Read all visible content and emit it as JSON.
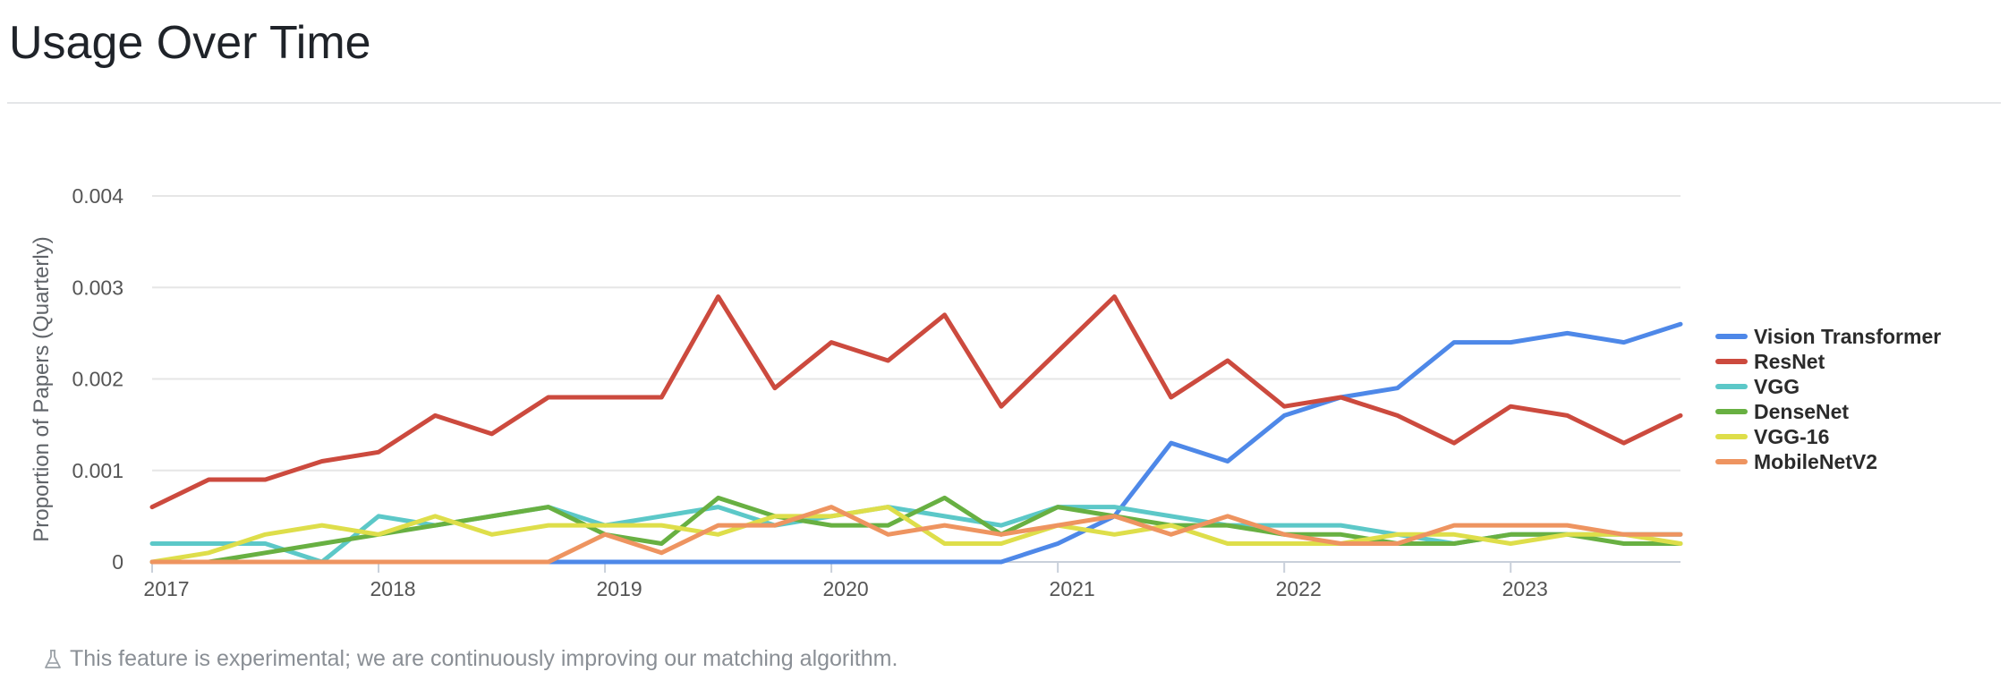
{
  "page": {
    "title": "Usage Over Time",
    "note": "This feature is experimental; we are continuously improving our matching algorithm."
  },
  "chart_data": {
    "type": "line",
    "title": "",
    "xlabel": "",
    "ylabel": "Proportion of Papers (Quarterly)",
    "ylim": [
      0,
      0.004
    ],
    "yticks": [
      0,
      0.001,
      0.002,
      0.003,
      0.004
    ],
    "ytick_labels": [
      "0",
      "0.001",
      "0.002",
      "0.003",
      "0.004"
    ],
    "xlim": [
      2017,
      2023.75
    ],
    "xticks": [
      2017,
      2018,
      2019,
      2020,
      2021,
      2022,
      2023
    ],
    "xtick_labels": [
      "2017",
      "2018",
      "2019",
      "2020",
      "2021",
      "2022",
      "2023"
    ],
    "grid": true,
    "legend_position": "right",
    "x": [
      2017,
      2017.25,
      2017.5,
      2017.75,
      2018,
      2018.25,
      2018.5,
      2018.75,
      2019,
      2019.25,
      2019.5,
      2019.75,
      2020,
      2020.25,
      2020.5,
      2020.75,
      2021,
      2021.25,
      2021.5,
      2021.75,
      2022,
      2022.25,
      2022.5,
      2022.75,
      2023,
      2023.25,
      2023.5,
      2023.75
    ],
    "series": [
      {
        "name": "Vision Transformer",
        "color": "#4e88e8",
        "values": [
          0,
          0,
          0,
          0,
          0,
          0,
          0,
          0,
          0,
          0,
          0,
          0,
          0,
          0,
          0,
          0,
          0.0002,
          0.0005,
          0.0013,
          0.0011,
          0.0016,
          0.0018,
          0.0019,
          0.0024,
          0.0024,
          0.0025,
          0.0024,
          0.0026
        ]
      },
      {
        "name": "ResNet",
        "color": "#cc4a3e",
        "values": [
          0.0006,
          0.0009,
          0.0009,
          0.0011,
          0.0012,
          0.0016,
          0.0014,
          0.0018,
          0.0018,
          0.0018,
          0.0029,
          0.0019,
          0.0024,
          0.0022,
          0.0027,
          0.0017,
          0.0023,
          0.0029,
          0.0018,
          0.0022,
          0.0017,
          0.0018,
          0.0016,
          0.0013,
          0.0017,
          0.0016,
          0.0013,
          0.0016
        ]
      },
      {
        "name": "VGG",
        "color": "#5cc8c8",
        "values": [
          0.0002,
          0.0002,
          0.0002,
          0,
          0.0005,
          0.0004,
          0.0005,
          0.0006,
          0.0004,
          0.0005,
          0.0006,
          0.0004,
          0.0005,
          0.0006,
          0.0005,
          0.0004,
          0.0006,
          0.0006,
          0.0005,
          0.0004,
          0.0004,
          0.0004,
          0.0003,
          0.0002,
          0.0003,
          0.0003,
          0.0003,
          0.0003
        ]
      },
      {
        "name": "DenseNet",
        "color": "#68b042",
        "values": [
          0,
          0,
          0.0001,
          0.0002,
          0.0003,
          0.0004,
          0.0005,
          0.0006,
          0.0003,
          0.0002,
          0.0007,
          0.0005,
          0.0004,
          0.0004,
          0.0007,
          0.0003,
          0.0006,
          0.0005,
          0.0004,
          0.0004,
          0.0003,
          0.0003,
          0.0002,
          0.0002,
          0.0003,
          0.0003,
          0.0002,
          0.0002
        ]
      },
      {
        "name": "VGG-16",
        "color": "#dede4a",
        "values": [
          0,
          0.0001,
          0.0003,
          0.0004,
          0.0003,
          0.0005,
          0.0003,
          0.0004,
          0.0004,
          0.0004,
          0.0003,
          0.0005,
          0.0005,
          0.0006,
          0.0002,
          0.0002,
          0.0004,
          0.0003,
          0.0004,
          0.0002,
          0.0002,
          0.0002,
          0.0003,
          0.0003,
          0.0002,
          0.0003,
          0.0003,
          0.0002
        ]
      },
      {
        "name": "MobileNetV2",
        "color": "#ee9460",
        "values": [
          0,
          0,
          0,
          0,
          0,
          0,
          0,
          0,
          0.0003,
          0.0001,
          0.0004,
          0.0004,
          0.0006,
          0.0003,
          0.0004,
          0.0003,
          0.0004,
          0.0005,
          0.0003,
          0.0005,
          0.0003,
          0.0002,
          0.0002,
          0.0004,
          0.0004,
          0.0004,
          0.0003,
          0.0003
        ]
      }
    ]
  }
}
